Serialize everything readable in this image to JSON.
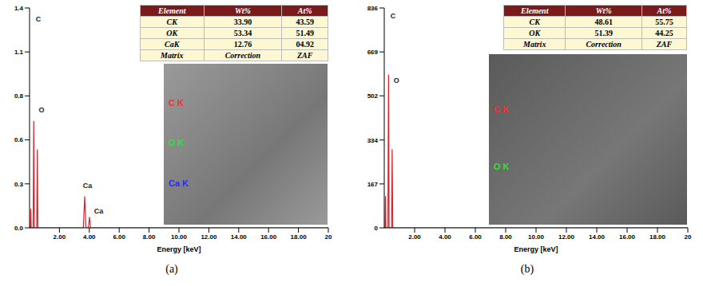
{
  "chart_data": [
    {
      "panel_label": "(a)",
      "type": "line",
      "color": "#e0202a",
      "x_label": "Energy [keV]",
      "x": [
        0,
        0.05,
        0.08,
        0.11,
        0.24,
        0.28,
        0.32,
        0.48,
        0.52,
        0.56,
        3.6,
        3.69,
        3.78,
        3.94,
        4.01,
        4.08,
        20
      ],
      "values": [
        0,
        0,
        0.12,
        0,
        0,
        0.68,
        0,
        0,
        0.5,
        0,
        0,
        0.2,
        0,
        0,
        0.07,
        0,
        0
      ],
      "xlim": [
        0,
        20
      ],
      "xticks": [
        {
          "value": 2,
          "label": "2.00"
        },
        {
          "value": 4,
          "label": "4.00"
        },
        {
          "value": 6,
          "label": "6.00"
        },
        {
          "value": 8,
          "label": "8.00"
        },
        {
          "value": 10,
          "label": "10.00"
        },
        {
          "value": 12,
          "label": "12.00"
        },
        {
          "value": 14,
          "label": "14.00"
        },
        {
          "value": 16,
          "label": "16.00"
        },
        {
          "value": 18,
          "label": "18.00"
        },
        20
      ],
      "ylim": [
        0,
        1.4
      ],
      "yticks": [
        {
          "value": 0,
          "label": "0.0"
        },
        {
          "value": 0.28,
          "label": "0.3"
        },
        {
          "value": 0.56,
          "label": "0.6"
        },
        {
          "value": 0.84,
          "label": "0.8"
        },
        {
          "value": 1.12,
          "label": "1.1"
        },
        1.4
      ],
      "annotations": [
        {
          "text": "C",
          "x": 0.15,
          "y": 1.33
        },
        {
          "text": "O",
          "x": 0.35,
          "y": 0.75
        },
        {
          "text": "Ca",
          "x": 3.3,
          "y": 0.27
        },
        {
          "text": "Ca",
          "x": 4.05,
          "y": 0.11
        }
      ],
      "table": {
        "header": [
          "Element",
          "Wt%",
          "At%"
        ],
        "rows": [
          [
            "CK",
            "33.90",
            "43.59"
          ],
          [
            "OK",
            "53.34",
            "51.49"
          ],
          [
            "CaK",
            "12.76",
            "04.92"
          ],
          [
            "Matrix",
            "Correction",
            "ZAF"
          ]
        ]
      },
      "linescan_labels": [
        {
          "text": "C K",
          "color": "#ff2a2a"
        },
        {
          "text": "O K",
          "color": "#2ee02e"
        },
        {
          "text": "Ca K",
          "color": "#2a2aff"
        }
      ]
    },
    {
      "panel_label": "(b)",
      "type": "line",
      "color": "#e0202a",
      "x_label": "Energy [keV]",
      "x": [
        0,
        0.05,
        0.08,
        0.11,
        0.24,
        0.28,
        0.32,
        0.48,
        0.52,
        0.56,
        20
      ],
      "values": [
        0,
        0,
        120,
        0,
        0,
        582,
        0,
        0,
        299,
        0,
        0
      ],
      "xlim": [
        0,
        20
      ],
      "xticks": [
        {
          "value": 2,
          "label": "2.00"
        },
        {
          "value": 4,
          "label": "4.00"
        },
        {
          "value": 6,
          "label": "6.00"
        },
        {
          "value": 8,
          "label": "8.00"
        },
        {
          "value": 10,
          "label": "10.00"
        },
        {
          "value": 12,
          "label": "12.00"
        },
        {
          "value": 14,
          "label": "14.00"
        },
        {
          "value": 16,
          "label": "16.00"
        },
        {
          "value": 18,
          "label": "18.00"
        },
        20
      ],
      "ylim": [
        0,
        836
      ],
      "yticks": [
        0,
        167,
        334,
        502,
        669,
        836
      ],
      "annotations": [
        {
          "text": "C",
          "x": 0.15,
          "y": 805
        },
        {
          "text": "O",
          "x": 0.35,
          "y": 560
        }
      ],
      "table": {
        "header": [
          "Element",
          "Wt%",
          "At%"
        ],
        "rows": [
          [
            "CK",
            "48.61",
            "55.75"
          ],
          [
            "OK",
            "51.39",
            "44.25"
          ],
          [
            "Matrix",
            "Correction",
            "ZAF"
          ]
        ]
      },
      "linescan_labels": [
        {
          "text": "C K",
          "color": "#ff2a2a"
        },
        {
          "text": "O K",
          "color": "#2ee02e"
        }
      ]
    }
  ]
}
